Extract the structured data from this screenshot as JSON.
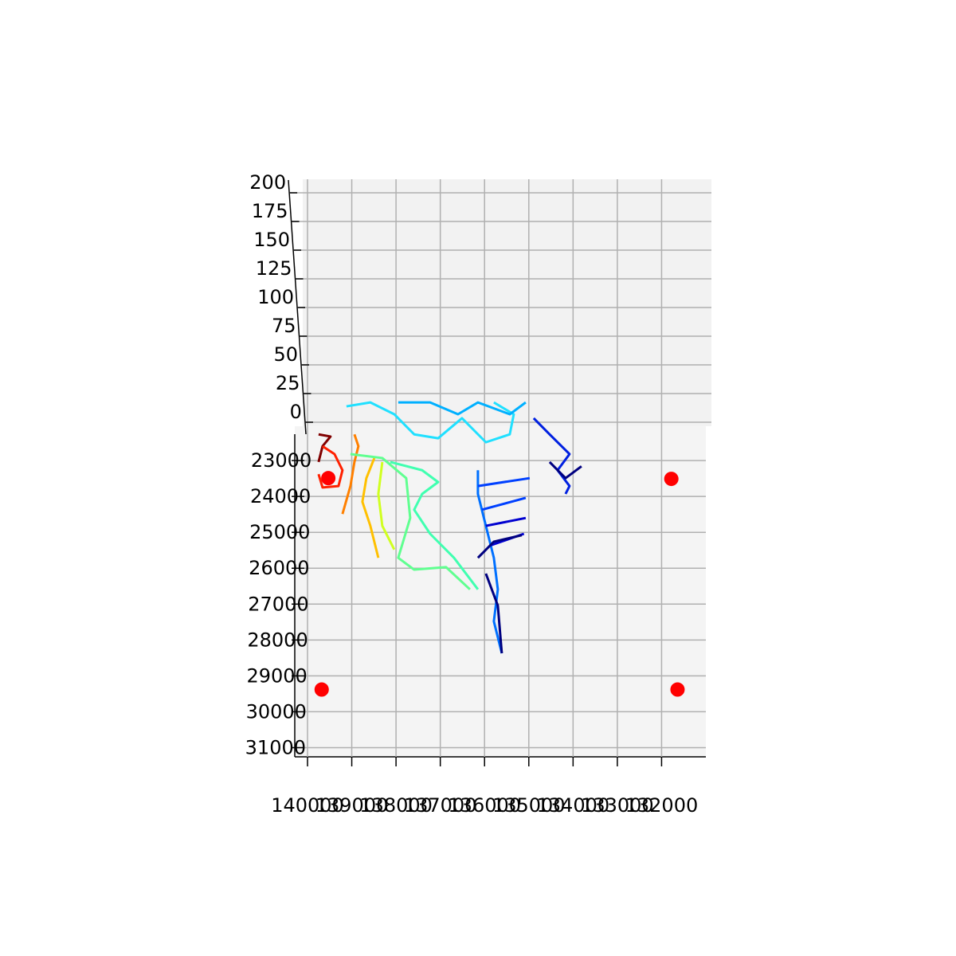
{
  "chart_data": {
    "type": "line3d",
    "xlim": [
      140000,
      131000
    ],
    "xticks": [
      140000,
      139000,
      138000,
      137000,
      136000,
      135000,
      134000,
      133000,
      132000
    ],
    "ylim": [
      21000,
      31300
    ],
    "yticks": [
      23000,
      24000,
      25000,
      26000,
      27000,
      28000,
      29000,
      30000,
      31000
    ],
    "zlim": [
      0,
      200
    ],
    "zticks": [
      0,
      25,
      50,
      75,
      100,
      125,
      150,
      175,
      200
    ],
    "grid": true,
    "series": [
      {
        "color": "#800000",
        "x": [
          139750,
          139480,
          139660,
          139750
        ],
        "y": [
          22270,
          22330,
          22600,
          23040
        ]
      },
      {
        "color": "#ff2000",
        "x": [
          139660,
          139390,
          139210,
          139300,
          139660,
          139750
        ],
        "y": [
          22600,
          22820,
          23270,
          23710,
          23750,
          23380
        ]
      },
      {
        "color": "#ff8000",
        "x": [
          138940,
          138850,
          138940,
          139030,
          139210
        ],
        "y": [
          22270,
          22600,
          23040,
          23710,
          24490
        ]
      },
      {
        "color": "#ffc000",
        "x": [
          138490,
          138670,
          138760,
          138580,
          138400
        ],
        "y": [
          22930,
          23490,
          24150,
          24820,
          25710
        ]
      },
      {
        "color": "#d0ff20",
        "x": [
          138310,
          138400,
          138310,
          138040
        ],
        "y": [
          23040,
          23930,
          24820,
          25480
        ]
      },
      {
        "color": "#60ff90",
        "x": [
          139030,
          138310,
          137770,
          137680,
          137950,
          137590,
          136870,
          136330
        ],
        "y": [
          22820,
          22930,
          23490,
          24600,
          25710,
          26040,
          25970,
          26590
        ]
      },
      {
        "color": "#40ffb0",
        "x": [
          138130,
          137410,
          137050,
          137410,
          137590,
          137230,
          136690,
          136150
        ],
        "y": [
          23040,
          23270,
          23600,
          23930,
          24370,
          25040,
          25710,
          26590
        ]
      },
      {
        "color": "#20e0ff",
        "x": [
          139120,
          138580,
          138040,
          137590,
          137050,
          136510,
          135970,
          135430,
          135340,
          135790
        ],
        "y": [
          21490,
          21380,
          21710,
          22270,
          22380,
          21820,
          22490,
          22270,
          21710,
          21380
        ]
      },
      {
        "color": "#00b0ff",
        "x": [
          137950,
          137230,
          136600,
          136150,
          135430,
          135070
        ],
        "y": [
          21380,
          21380,
          21710,
          21380,
          21710,
          21380
        ]
      },
      {
        "color": "#0070ff",
        "x": [
          136150,
          136150,
          135970,
          135790,
          135700,
          135790,
          135610
        ],
        "y": [
          23270,
          23930,
          24820,
          25710,
          26590,
          27480,
          28370
        ]
      },
      {
        "color": "#0040ff",
        "x": [
          136150,
          134980,
          null,
          136060,
          135070
        ],
        "y": [
          23710,
          23490,
          null,
          24370,
          24040
        ]
      },
      {
        "color": "#0000d0",
        "x": [
          135970,
          135070,
          null,
          135880,
          135110
        ],
        "y": [
          24820,
          24600,
          null,
          25370,
          25040
        ]
      },
      {
        "color": "#0020e0",
        "x": [
          134890,
          134530,
          134080,
          134350,
          134080,
          134170
        ],
        "y": [
          21820,
          22270,
          22820,
          23270,
          23710,
          23930
        ]
      },
      {
        "color": "#000080",
        "x": [
          136150,
          135790,
          135160,
          null,
          135970,
          135700,
          135610,
          null,
          134530,
          134170,
          133810
        ],
        "y": [
          25710,
          25260,
          25080,
          null,
          26150,
          27040,
          28370,
          null,
          23040,
          23490,
          23160
        ]
      }
    ],
    "points": {
      "color": "#ff0000",
      "x": [
        139530,
        131780,
        139680,
        131640
      ],
      "y": [
        23490,
        23510,
        29380,
        29380
      ]
    }
  }
}
